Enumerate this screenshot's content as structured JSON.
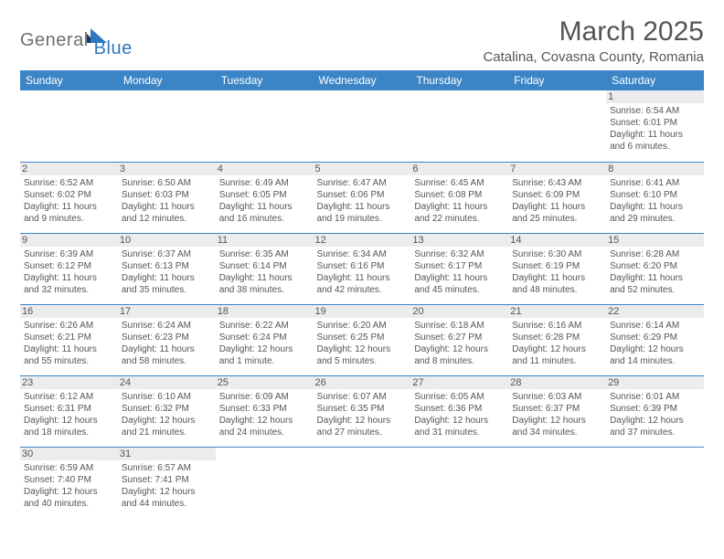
{
  "brand": {
    "part1": "General",
    "part2": "Blue"
  },
  "title": "March 2025",
  "location": "Catalina, Covasna County, Romania",
  "colors": {
    "header_bg": "#3b85c6",
    "header_text": "#ffffff",
    "border": "#3b85c6",
    "daynum_bg": "#ececec",
    "text": "#555555",
    "brand_grey": "#6f6f6f",
    "brand_blue": "#2f78bf"
  },
  "weekdays": [
    "Sunday",
    "Monday",
    "Tuesday",
    "Wednesday",
    "Thursday",
    "Friday",
    "Saturday"
  ],
  "weeks": [
    [
      {
        "day": "",
        "lines": [
          "",
          "",
          "",
          ""
        ]
      },
      {
        "day": "",
        "lines": [
          "",
          "",
          "",
          ""
        ]
      },
      {
        "day": "",
        "lines": [
          "",
          "",
          "",
          ""
        ]
      },
      {
        "day": "",
        "lines": [
          "",
          "",
          "",
          ""
        ]
      },
      {
        "day": "",
        "lines": [
          "",
          "",
          "",
          ""
        ]
      },
      {
        "day": "",
        "lines": [
          "",
          "",
          "",
          ""
        ]
      },
      {
        "day": "1",
        "lines": [
          "Sunrise: 6:54 AM",
          "Sunset: 6:01 PM",
          "Daylight: 11 hours",
          "and 6 minutes."
        ]
      }
    ],
    [
      {
        "day": "2",
        "lines": [
          "Sunrise: 6:52 AM",
          "Sunset: 6:02 PM",
          "Daylight: 11 hours",
          "and 9 minutes."
        ]
      },
      {
        "day": "3",
        "lines": [
          "Sunrise: 6:50 AM",
          "Sunset: 6:03 PM",
          "Daylight: 11 hours",
          "and 12 minutes."
        ]
      },
      {
        "day": "4",
        "lines": [
          "Sunrise: 6:49 AM",
          "Sunset: 6:05 PM",
          "Daylight: 11 hours",
          "and 16 minutes."
        ]
      },
      {
        "day": "5",
        "lines": [
          "Sunrise: 6:47 AM",
          "Sunset: 6:06 PM",
          "Daylight: 11 hours",
          "and 19 minutes."
        ]
      },
      {
        "day": "6",
        "lines": [
          "Sunrise: 6:45 AM",
          "Sunset: 6:08 PM",
          "Daylight: 11 hours",
          "and 22 minutes."
        ]
      },
      {
        "day": "7",
        "lines": [
          "Sunrise: 6:43 AM",
          "Sunset: 6:09 PM",
          "Daylight: 11 hours",
          "and 25 minutes."
        ]
      },
      {
        "day": "8",
        "lines": [
          "Sunrise: 6:41 AM",
          "Sunset: 6:10 PM",
          "Daylight: 11 hours",
          "and 29 minutes."
        ]
      }
    ],
    [
      {
        "day": "9",
        "lines": [
          "Sunrise: 6:39 AM",
          "Sunset: 6:12 PM",
          "Daylight: 11 hours",
          "and 32 minutes."
        ]
      },
      {
        "day": "10",
        "lines": [
          "Sunrise: 6:37 AM",
          "Sunset: 6:13 PM",
          "Daylight: 11 hours",
          "and 35 minutes."
        ]
      },
      {
        "day": "11",
        "lines": [
          "Sunrise: 6:35 AM",
          "Sunset: 6:14 PM",
          "Daylight: 11 hours",
          "and 38 minutes."
        ]
      },
      {
        "day": "12",
        "lines": [
          "Sunrise: 6:34 AM",
          "Sunset: 6:16 PM",
          "Daylight: 11 hours",
          "and 42 minutes."
        ]
      },
      {
        "day": "13",
        "lines": [
          "Sunrise: 6:32 AM",
          "Sunset: 6:17 PM",
          "Daylight: 11 hours",
          "and 45 minutes."
        ]
      },
      {
        "day": "14",
        "lines": [
          "Sunrise: 6:30 AM",
          "Sunset: 6:19 PM",
          "Daylight: 11 hours",
          "and 48 minutes."
        ]
      },
      {
        "day": "15",
        "lines": [
          "Sunrise: 6:28 AM",
          "Sunset: 6:20 PM",
          "Daylight: 11 hours",
          "and 52 minutes."
        ]
      }
    ],
    [
      {
        "day": "16",
        "lines": [
          "Sunrise: 6:26 AM",
          "Sunset: 6:21 PM",
          "Daylight: 11 hours",
          "and 55 minutes."
        ]
      },
      {
        "day": "17",
        "lines": [
          "Sunrise: 6:24 AM",
          "Sunset: 6:23 PM",
          "Daylight: 11 hours",
          "and 58 minutes."
        ]
      },
      {
        "day": "18",
        "lines": [
          "Sunrise: 6:22 AM",
          "Sunset: 6:24 PM",
          "Daylight: 12 hours",
          "and 1 minute."
        ]
      },
      {
        "day": "19",
        "lines": [
          "Sunrise: 6:20 AM",
          "Sunset: 6:25 PM",
          "Daylight: 12 hours",
          "and 5 minutes."
        ]
      },
      {
        "day": "20",
        "lines": [
          "Sunrise: 6:18 AM",
          "Sunset: 6:27 PM",
          "Daylight: 12 hours",
          "and 8 minutes."
        ]
      },
      {
        "day": "21",
        "lines": [
          "Sunrise: 6:16 AM",
          "Sunset: 6:28 PM",
          "Daylight: 12 hours",
          "and 11 minutes."
        ]
      },
      {
        "day": "22",
        "lines": [
          "Sunrise: 6:14 AM",
          "Sunset: 6:29 PM",
          "Daylight: 12 hours",
          "and 14 minutes."
        ]
      }
    ],
    [
      {
        "day": "23",
        "lines": [
          "Sunrise: 6:12 AM",
          "Sunset: 6:31 PM",
          "Daylight: 12 hours",
          "and 18 minutes."
        ]
      },
      {
        "day": "24",
        "lines": [
          "Sunrise: 6:10 AM",
          "Sunset: 6:32 PM",
          "Daylight: 12 hours",
          "and 21 minutes."
        ]
      },
      {
        "day": "25",
        "lines": [
          "Sunrise: 6:09 AM",
          "Sunset: 6:33 PM",
          "Daylight: 12 hours",
          "and 24 minutes."
        ]
      },
      {
        "day": "26",
        "lines": [
          "Sunrise: 6:07 AM",
          "Sunset: 6:35 PM",
          "Daylight: 12 hours",
          "and 27 minutes."
        ]
      },
      {
        "day": "27",
        "lines": [
          "Sunrise: 6:05 AM",
          "Sunset: 6:36 PM",
          "Daylight: 12 hours",
          "and 31 minutes."
        ]
      },
      {
        "day": "28",
        "lines": [
          "Sunrise: 6:03 AM",
          "Sunset: 6:37 PM",
          "Daylight: 12 hours",
          "and 34 minutes."
        ]
      },
      {
        "day": "29",
        "lines": [
          "Sunrise: 6:01 AM",
          "Sunset: 6:39 PM",
          "Daylight: 12 hours",
          "and 37 minutes."
        ]
      }
    ],
    [
      {
        "day": "30",
        "lines": [
          "Sunrise: 6:59 AM",
          "Sunset: 7:40 PM",
          "Daylight: 12 hours",
          "and 40 minutes."
        ]
      },
      {
        "day": "31",
        "lines": [
          "Sunrise: 6:57 AM",
          "Sunset: 7:41 PM",
          "Daylight: 12 hours",
          "and 44 minutes."
        ]
      },
      {
        "day": "",
        "lines": [
          "",
          "",
          "",
          ""
        ]
      },
      {
        "day": "",
        "lines": [
          "",
          "",
          "",
          ""
        ]
      },
      {
        "day": "",
        "lines": [
          "",
          "",
          "",
          ""
        ]
      },
      {
        "day": "",
        "lines": [
          "",
          "",
          "",
          ""
        ]
      },
      {
        "day": "",
        "lines": [
          "",
          "",
          "",
          ""
        ]
      }
    ]
  ]
}
